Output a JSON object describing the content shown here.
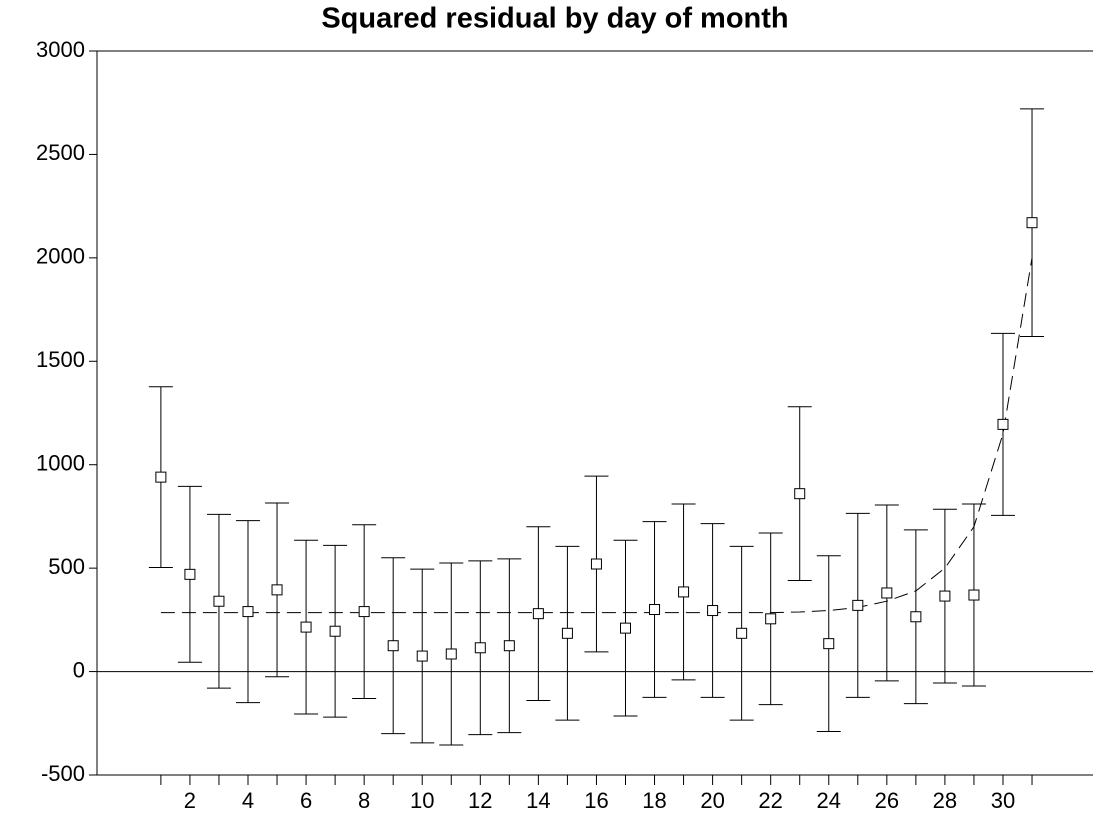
{
  "chart_data": {
    "type": "scatter",
    "title": "Squared residual by day of month",
    "x": [
      1,
      2,
      3,
      4,
      5,
      6,
      7,
      8,
      9,
      10,
      11,
      12,
      13,
      14,
      15,
      16,
      17,
      18,
      19,
      20,
      21,
      22,
      23,
      24,
      25,
      26,
      27,
      28,
      29,
      30,
      31
    ],
    "values": [
      940,
      470,
      340,
      290,
      395,
      215,
      195,
      290,
      125,
      75,
      85,
      115,
      125,
      280,
      185,
      520,
      210,
      300,
      385,
      295,
      185,
      255,
      860,
      135,
      320,
      380,
      265,
      365,
      370,
      1195,
      2170
    ],
    "errors": [
      437,
      425,
      420,
      440,
      420,
      420,
      415,
      420,
      425,
      420,
      440,
      420,
      420,
      420,
      420,
      425,
      425,
      425,
      425,
      420,
      420,
      415,
      420,
      425,
      445,
      425,
      420,
      420,
      440,
      440,
      550
    ],
    "fit_values": [
      285,
      285,
      285,
      285,
      285,
      285,
      285,
      285,
      285,
      285,
      285,
      285,
      285,
      285,
      285,
      285,
      285,
      285,
      285,
      285,
      285,
      285,
      288,
      295,
      310,
      340,
      390,
      500,
      700,
      1150,
      2000
    ],
    "color": "#000000",
    "xlim": [
      -1.2,
      33.1
    ],
    "xticks": [
      2,
      4,
      6,
      8,
      10,
      12,
      14,
      16,
      18,
      20,
      22,
      24,
      26,
      28,
      30
    ],
    "xminor_ticks": [
      1,
      3,
      5,
      7,
      9,
      11,
      13,
      15,
      17,
      19,
      21,
      23,
      25,
      27,
      29,
      31
    ],
    "ylim": [
      -500,
      3000
    ],
    "yticks": [
      -500,
      0,
      500,
      1000,
      1500,
      2000,
      2500,
      3000
    ]
  }
}
